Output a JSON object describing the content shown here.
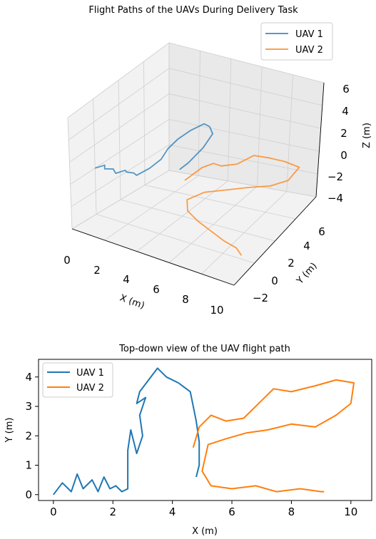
{
  "chart_data": [
    {
      "type": "line3d",
      "title": "Flight Paths of the UAVs During Delivery Task",
      "xlabel": "X (m)",
      "ylabel": "Y (m)",
      "zlabel": "Z (m)",
      "xlim": [
        0,
        10
      ],
      "ylim": [
        -2,
        6
      ],
      "zlim": [
        -4,
        6
      ],
      "xticks": [
        "0",
        "2",
        "4",
        "6",
        "8",
        "10"
      ],
      "yticks": [
        "−2",
        "0",
        "2",
        "4",
        "6"
      ],
      "zticks": [
        "−4",
        "−2",
        "0",
        "2",
        "4",
        "6"
      ],
      "grid": true,
      "legend_position": "top-right",
      "series": [
        {
          "name": "UAV 1",
          "color": "#1f77b4",
          "points": [
            [
              0.0,
              0.0,
              0.0
            ],
            [
              0.3,
              0.4,
              0.1
            ],
            [
              0.6,
              0.0,
              0.2
            ],
            [
              0.9,
              0.3,
              0.1
            ],
            [
              1.2,
              0.1,
              0.0
            ],
            [
              1.5,
              0.5,
              0.1
            ],
            [
              1.8,
              0.2,
              0.3
            ],
            [
              2.1,
              0.4,
              0.2
            ],
            [
              2.5,
              0.1,
              0.4
            ],
            [
              2.8,
              0.8,
              0.6
            ],
            [
              3.0,
              1.5,
              0.9
            ],
            [
              2.9,
              2.2,
              1.2
            ],
            [
              3.0,
              2.9,
              1.5
            ],
            [
              3.3,
              3.6,
              1.8
            ],
            [
              3.7,
              4.2,
              2.0
            ],
            [
              4.2,
              4.0,
              2.1
            ],
            [
              4.7,
              3.6,
              2.0
            ],
            [
              4.9,
              2.5,
              1.8
            ],
            [
              4.9,
              1.2,
              1.6
            ],
            [
              4.8,
              0.6,
              1.5
            ]
          ]
        },
        {
          "name": "UAV 2",
          "color": "#ff7f0e",
          "points": [
            [
              4.7,
              1.2,
              0.0
            ],
            [
              5.0,
              2.3,
              0.3
            ],
            [
              5.5,
              2.6,
              0.6
            ],
            [
              6.2,
              2.3,
              0.9
            ],
            [
              7.0,
              2.6,
              1.1
            ],
            [
              7.5,
              3.4,
              1.3
            ],
            [
              8.3,
              3.6,
              1.2
            ],
            [
              9.2,
              3.8,
              1.0
            ],
            [
              10.1,
              3.9,
              0.7
            ],
            [
              10.0,
              3.0,
              0.4
            ],
            [
              9.2,
              2.5,
              0.1
            ],
            [
              8.0,
              2.2,
              -0.2
            ],
            [
              7.0,
              1.9,
              -0.5
            ],
            [
              6.3,
              1.8,
              -0.8
            ],
            [
              5.6,
              1.7,
              -1.1
            ],
            [
              5.0,
              1.0,
              -1.4
            ],
            [
              5.4,
              0.5,
              -1.8
            ],
            [
              6.2,
              0.3,
              -2.2
            ],
            [
              7.1,
              0.2,
              -2.6
            ],
            [
              8.0,
              0.1,
              -3.0
            ],
            [
              8.7,
              0.2,
              -3.4
            ],
            [
              9.1,
              0.1,
              -3.8
            ]
          ]
        }
      ]
    },
    {
      "type": "line",
      "title": "Top-down view of the UAV flight path",
      "xlabel": "X (m)",
      "ylabel": "Y (m)",
      "xlim": [
        -0.5,
        10.7
      ],
      "ylim": [
        -0.2,
        4.6
      ],
      "xticks": [
        0,
        2,
        4,
        6,
        8,
        10
      ],
      "yticks": [
        0,
        1,
        2,
        3,
        4
      ],
      "grid": false,
      "legend_position": "top-left",
      "series": [
        {
          "name": "UAV 1",
          "color": "#1f77b4",
          "x": [
            0.0,
            0.3,
            0.6,
            0.8,
            1.0,
            1.3,
            1.5,
            1.7,
            1.9,
            2.1,
            2.3,
            2.5,
            2.5,
            2.6,
            2.8,
            3.0,
            2.9,
            3.1,
            2.8,
            2.9,
            3.2,
            3.5,
            3.8,
            4.2,
            4.6,
            4.8,
            4.9,
            4.9,
            4.8
          ],
          "y": [
            0.0,
            0.4,
            0.1,
            0.7,
            0.2,
            0.5,
            0.1,
            0.6,
            0.2,
            0.3,
            0.1,
            0.2,
            1.5,
            2.2,
            1.4,
            2.0,
            2.7,
            3.3,
            3.1,
            3.5,
            3.9,
            4.3,
            4.0,
            3.8,
            3.5,
            2.5,
            1.8,
            1.0,
            0.6
          ]
        },
        {
          "name": "UAV 2",
          "color": "#ff7f0e",
          "x": [
            4.7,
            4.9,
            5.3,
            5.8,
            6.4,
            7.0,
            7.4,
            8.0,
            8.8,
            9.5,
            10.1,
            10.0,
            9.5,
            8.8,
            8.0,
            7.2,
            6.5,
            5.8,
            5.2,
            5.0,
            5.3,
            6.0,
            6.8,
            7.5,
            8.3,
            9.0,
            9.1
          ],
          "y": [
            1.6,
            2.3,
            2.7,
            2.5,
            2.6,
            3.2,
            3.6,
            3.5,
            3.7,
            3.9,
            3.8,
            3.1,
            2.7,
            2.3,
            2.4,
            2.2,
            2.1,
            1.9,
            1.7,
            0.8,
            0.3,
            0.2,
            0.3,
            0.1,
            0.2,
            0.1,
            0.1
          ]
        }
      ]
    }
  ]
}
